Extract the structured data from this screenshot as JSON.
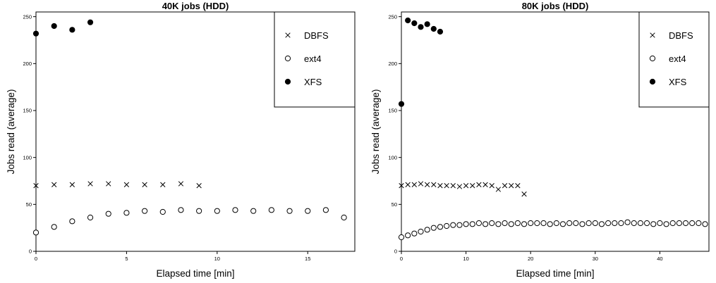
{
  "chart_data": [
    {
      "type": "scatter",
      "title": "40K jobs (HDD)",
      "xlabel": "Elapsed time [min]",
      "ylabel": "Jobs read (average)",
      "xlim": [
        0,
        17.6
      ],
      "ylim": [
        0,
        255
      ],
      "xticks": [
        0,
        5,
        10,
        15
      ],
      "xtick_labels": [
        "0",
        "5",
        "10",
        "15"
      ],
      "yticks": [
        0,
        50,
        100,
        150,
        200,
        250
      ],
      "ytick_labels": [
        "0",
        "50",
        "100",
        "150",
        "200",
        "250"
      ],
      "grid": false,
      "legend_position": "top-right",
      "series": [
        {
          "name": "DBFS",
          "marker": "cross",
          "x": [
            0,
            1,
            2,
            3,
            4,
            5,
            6,
            7,
            8,
            9
          ],
          "y": [
            70,
            71,
            71,
            72,
            72,
            71,
            71,
            71,
            72,
            70
          ]
        },
        {
          "name": "ext4",
          "marker": "open-circle",
          "x": [
            0,
            1,
            2,
            3,
            4,
            5,
            6,
            7,
            8,
            9,
            10,
            11,
            12,
            13,
            14,
            15,
            16,
            17
          ],
          "y": [
            20,
            26,
            32,
            36,
            40,
            41,
            43,
            42,
            44,
            43,
            43,
            44,
            43,
            44,
            43,
            43,
            44,
            36
          ]
        },
        {
          "name": "XFS",
          "marker": "filled-circle",
          "x": [
            0,
            1,
            2,
            3
          ],
          "y": [
            232,
            240,
            236,
            244
          ]
        }
      ]
    },
    {
      "type": "scatter",
      "title": "80K jobs (HDD)",
      "xlabel": "Elapsed time [min]",
      "ylabel": "Jobs read (average)",
      "xlim": [
        0,
        47.6
      ],
      "ylim": [
        0,
        255
      ],
      "xticks": [
        0,
        10,
        20,
        30,
        40
      ],
      "xtick_labels": [
        "0",
        "10",
        "20",
        "30",
        "40"
      ],
      "yticks": [
        0,
        50,
        100,
        150,
        200,
        250
      ],
      "ytick_labels": [
        "0",
        "50",
        "100",
        "150",
        "200",
        "250"
      ],
      "grid": false,
      "legend_position": "top-right",
      "series": [
        {
          "name": "DBFS",
          "marker": "cross",
          "x": [
            0,
            1,
            2,
            3,
            4,
            5,
            6,
            7,
            8,
            9,
            10,
            11,
            12,
            13,
            14,
            15,
            16,
            17,
            18,
            19
          ],
          "y": [
            70,
            71,
            71,
            72,
            71,
            71,
            70,
            70,
            70,
            69,
            70,
            70,
            71,
            71,
            70,
            66,
            70,
            70,
            70,
            61
          ]
        },
        {
          "name": "ext4",
          "marker": "open-circle",
          "x": [
            0,
            1,
            2,
            3,
            4,
            5,
            6,
            7,
            8,
            9,
            10,
            11,
            12,
            13,
            14,
            15,
            16,
            17,
            18,
            19,
            20,
            21,
            22,
            23,
            24,
            25,
            26,
            27,
            28,
            29,
            30,
            31,
            32,
            33,
            34,
            35,
            36,
            37,
            38,
            39,
            40,
            41,
            42,
            43,
            44,
            45,
            46,
            47
          ],
          "y": [
            15,
            17,
            19,
            21,
            23,
            25,
            26,
            27,
            28,
            28,
            29,
            29,
            30,
            29,
            30,
            29,
            30,
            29,
            30,
            29,
            30,
            30,
            30,
            29,
            30,
            29,
            30,
            30,
            29,
            30,
            30,
            29,
            30,
            30,
            30,
            31,
            30,
            30,
            30,
            29,
            30,
            29,
            30,
            30,
            30,
            30,
            30,
            29
          ]
        },
        {
          "name": "XFS",
          "marker": "filled-circle",
          "x": [
            0,
            1,
            2,
            3,
            4,
            5,
            6
          ],
          "y": [
            157,
            246,
            243,
            239,
            242,
            237,
            234
          ]
        }
      ]
    }
  ]
}
